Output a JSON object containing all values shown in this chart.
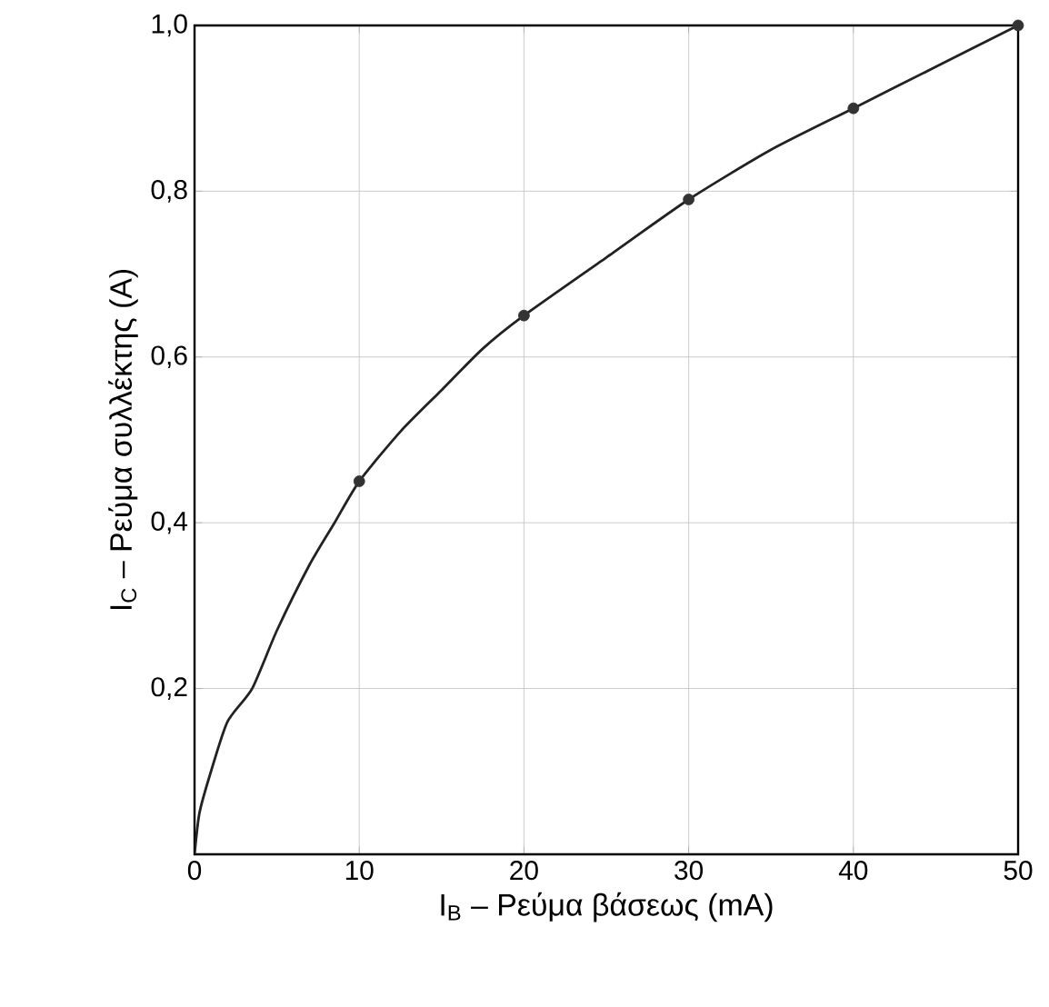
{
  "chart_data": {
    "type": "line",
    "xlabel": "I$_{B}$ – Ρεύμα βάσεως (mA)",
    "ylabel": "I$_{C}$ – Ρεύμα συλλέκτης (A)",
    "xlim": [
      0,
      50
    ],
    "ylim": [
      0,
      1.0
    ],
    "xticks": [
      0,
      10,
      20,
      30,
      40,
      50
    ],
    "yticks": [
      {
        "value": 0.2,
        "label": "0,2"
      },
      {
        "value": 0.4,
        "label": "0,4"
      },
      {
        "value": 0.6,
        "label": "0,6"
      },
      {
        "value": 0.8,
        "label": "0,8"
      },
      {
        "value": 1.0,
        "label": "1,0"
      }
    ],
    "grid": true,
    "series": [
      {
        "color": "#222222",
        "marker": "none",
        "x": [
          0,
          0.3,
          1,
          2,
          3.5,
          5,
          7,
          8.5,
          10,
          12.5,
          15,
          17.5,
          20,
          25,
          30,
          35,
          40,
          45,
          50
        ],
        "values": [
          0,
          0.05,
          0.1,
          0.16,
          0.2,
          0.27,
          0.35,
          0.4,
          0.45,
          0.51,
          0.56,
          0.61,
          0.65,
          0.72,
          0.79,
          0.85,
          0.9,
          0.95,
          1.0
        ]
      },
      {
        "type": "scatter",
        "color": "#333333",
        "marker": "circle",
        "x": [
          10,
          20,
          30,
          40,
          50
        ],
        "values": [
          0.45,
          0.65,
          0.79,
          0.9,
          1.0
        ]
      }
    ]
  }
}
